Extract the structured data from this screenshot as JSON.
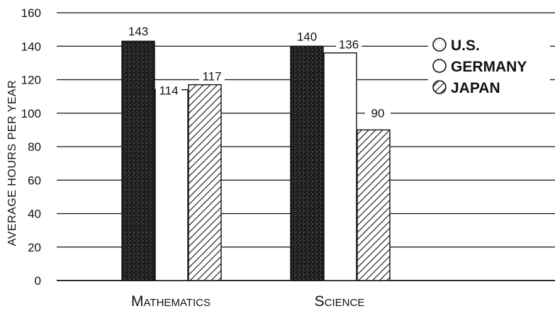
{
  "chart_data": {
    "type": "bar",
    "ylabel": "AVERAGE HOURS PER YEAR",
    "xlabel": "",
    "ylim": [
      0,
      160
    ],
    "yticks": [
      0,
      20,
      40,
      60,
      80,
      100,
      120,
      140,
      160
    ],
    "grid": true,
    "legend_position": "top-right",
    "categories": [
      "Mathematics",
      "Science"
    ],
    "series": [
      {
        "name": "U.S.",
        "values": [
          143,
          140
        ],
        "fill": "stippled",
        "color": "#1a1a1a"
      },
      {
        "name": "GERMANY",
        "values": [
          114,
          136
        ],
        "fill": "solid",
        "color": "#ffffff"
      },
      {
        "name": "JAPAN",
        "values": [
          117,
          90
        ],
        "fill": "hatched",
        "color": "#111111"
      }
    ]
  }
}
